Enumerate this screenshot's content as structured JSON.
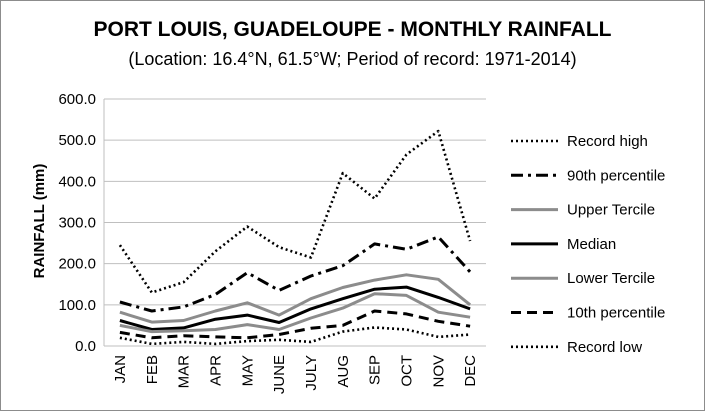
{
  "chart_data": {
    "type": "line",
    "title": "PORT LOUIS, GUADELOUPE - MONTHLY RAINFALL",
    "subtitle": "(Location: 16.4°N, 61.5°W; Period of record: 1971-2014)",
    "ylabel": "RAINFALL (mm)",
    "xlabel": "",
    "ylim": [
      0,
      600
    ],
    "yticks": [
      "0.0",
      "100.0",
      "200.0",
      "300.0",
      "400.0",
      "500.0",
      "600.0"
    ],
    "categories": [
      "JAN",
      "FEB",
      "MAR",
      "APR",
      "MAY",
      "JUNE",
      "JULY",
      "AUG",
      "SEP",
      "OCT",
      "NOV",
      "DEC"
    ],
    "grid": true,
    "legend_position": "right",
    "series": [
      {
        "name": "Record high",
        "color": "#000000",
        "style": "dotted",
        "values": [
          245,
          130,
          155,
          230,
          290,
          240,
          215,
          420,
          358,
          465,
          522,
          255
        ]
      },
      {
        "name": "90th percentile",
        "color": "#000000",
        "style": "dashdot",
        "values": [
          107,
          85,
          95,
          125,
          178,
          135,
          170,
          195,
          248,
          235,
          265,
          180
        ]
      },
      {
        "name": "Upper Tercile",
        "color": "#8c8c8c",
        "style": "solid",
        "values": [
          82,
          58,
          62,
          85,
          105,
          75,
          115,
          142,
          160,
          173,
          162,
          100
        ]
      },
      {
        "name": "Median",
        "color": "#000000",
        "style": "solid",
        "values": [
          62,
          40,
          44,
          65,
          75,
          57,
          90,
          115,
          138,
          143,
          118,
          90
        ]
      },
      {
        "name": "Lower Tercile",
        "color": "#8c8c8c",
        "style": "solid",
        "values": [
          50,
          35,
          37,
          40,
          52,
          40,
          68,
          92,
          127,
          123,
          82,
          70
        ]
      },
      {
        "name": "10th percentile",
        "color": "#000000",
        "style": "dashed",
        "values": [
          33,
          20,
          25,
          22,
          20,
          28,
          43,
          50,
          85,
          78,
          60,
          48
        ]
      },
      {
        "name": "Record low",
        "color": "#000000",
        "style": "dotted",
        "values": [
          20,
          5,
          10,
          5,
          12,
          15,
          10,
          35,
          45,
          40,
          22,
          28
        ]
      }
    ]
  }
}
